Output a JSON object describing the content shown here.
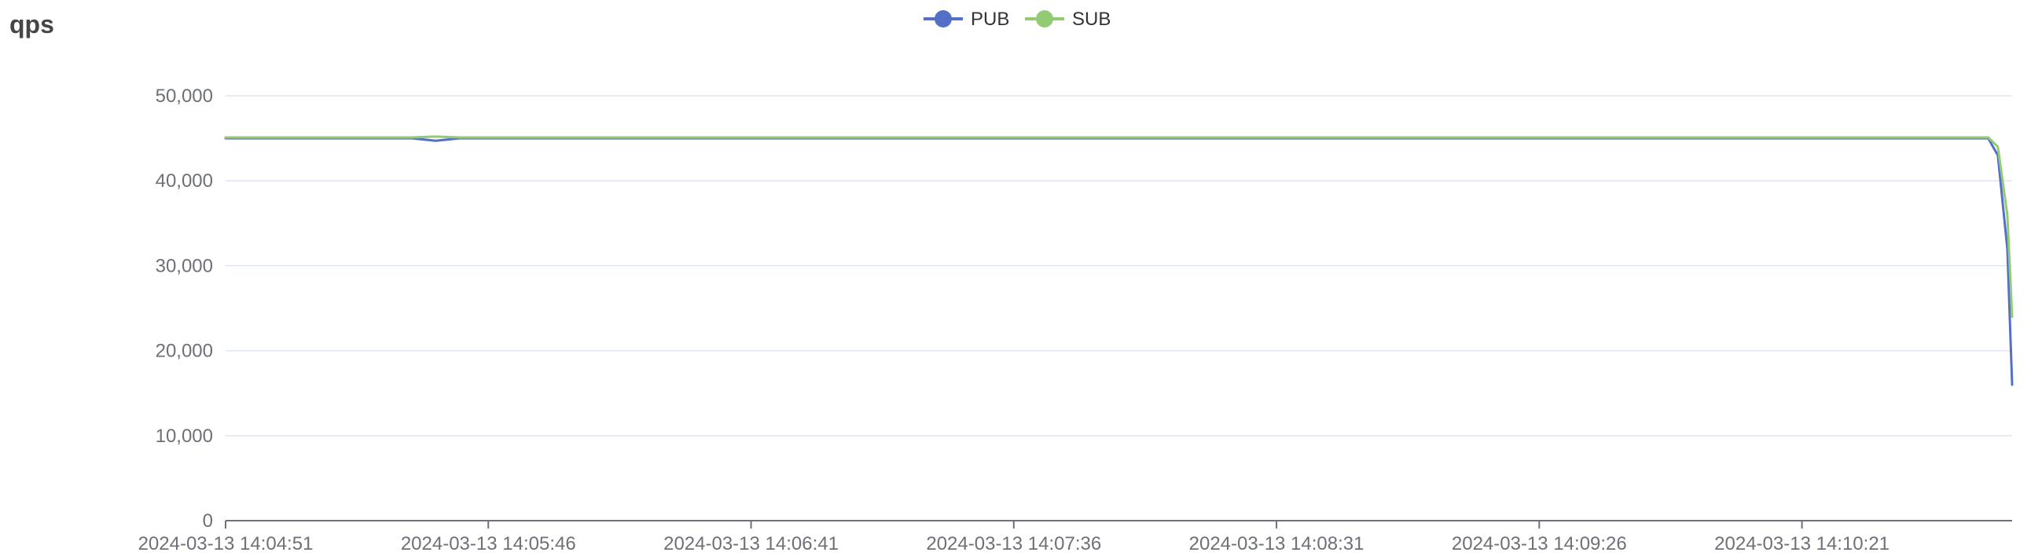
{
  "chart_data": {
    "type": "line",
    "title": "qps",
    "xlabel": "",
    "ylabel": "",
    "ylim": [
      0,
      50000
    ],
    "y_ticks": [
      "0",
      "10,000",
      "20,000",
      "30,000",
      "40,000",
      "50,000"
    ],
    "y_tick_values": [
      0,
      10000,
      20000,
      30000,
      40000,
      50000
    ],
    "x_tick_labels": [
      "2024-03-13 14:04:51",
      "2024-03-13 14:05:46",
      "2024-03-13 14:06:41",
      "2024-03-13 14:07:36",
      "2024-03-13 14:08:31",
      "2024-03-13 14:09:26",
      "2024-03-13 14:10:21"
    ],
    "x_start": "2024-03-13 14:04:51",
    "x_end": "2024-03-13 14:11:05",
    "grid": true,
    "legend_position": "top-center",
    "series": [
      {
        "name": "PUB",
        "color": "#5470c6",
        "x": [
          "2024-03-13 14:04:51",
          "2024-03-13 14:05:30",
          "2024-03-13 14:05:35",
          "2024-03-13 14:05:40",
          "2024-03-13 14:06:30",
          "2024-03-13 14:07:36",
          "2024-03-13 14:08:31",
          "2024-03-13 14:09:26",
          "2024-03-13 14:10:21",
          "2024-03-13 14:10:50",
          "2024-03-13 14:11:00",
          "2024-03-13 14:11:02",
          "2024-03-13 14:11:04",
          "2024-03-13 14:11:05"
        ],
        "values": [
          45000,
          45000,
          44700,
          45000,
          45000,
          45000,
          45000,
          45000,
          45000,
          45000,
          45000,
          43000,
          32000,
          16000
        ]
      },
      {
        "name": "SUB",
        "color": "#91cc75",
        "x": [
          "2024-03-13 14:04:51",
          "2024-03-13 14:05:30",
          "2024-03-13 14:05:35",
          "2024-03-13 14:05:40",
          "2024-03-13 14:06:30",
          "2024-03-13 14:07:36",
          "2024-03-13 14:08:31",
          "2024-03-13 14:09:26",
          "2024-03-13 14:10:21",
          "2024-03-13 14:10:50",
          "2024-03-13 14:11:00",
          "2024-03-13 14:11:02",
          "2024-03-13 14:11:04",
          "2024-03-13 14:11:05"
        ],
        "values": [
          45100,
          45100,
          45200,
          45100,
          45100,
          45100,
          45100,
          45100,
          45100,
          45100,
          45100,
          44000,
          36000,
          24000
        ]
      }
    ]
  }
}
